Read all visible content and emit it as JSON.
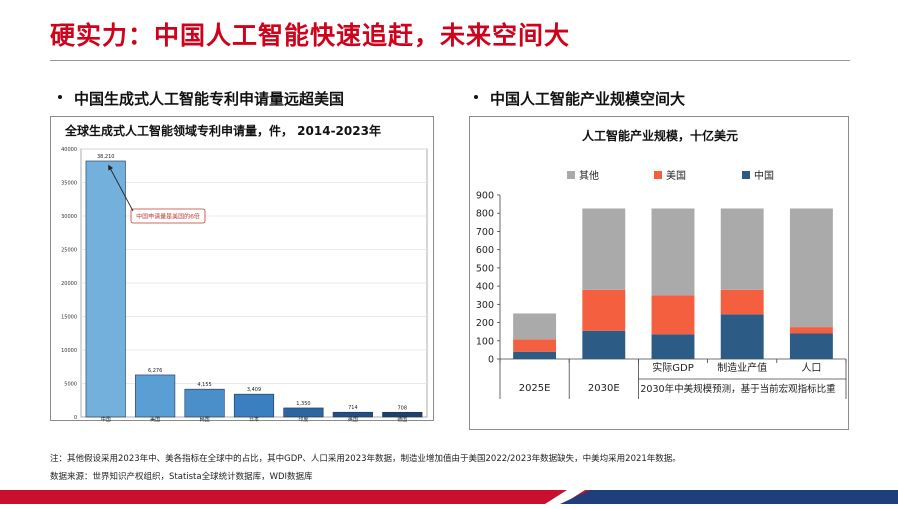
{
  "slide": {
    "title": "硬实力：中国人工智能快速追赶，未来空间大"
  },
  "left_section": {
    "heading": "中国生成式人工智能专利申请量远超美国"
  },
  "right_section": {
    "heading": "中国人工智能产业规模空间大"
  },
  "footnotes": {
    "note": "注：其他假设采用2023年中、美各指标在全球中的占比，其中GDP、人口采用2023年数据，制造业增加值由于美国2022/2023年数据缺失，中美均采用2021年数据。",
    "source": "数据来源：世界知识产权组织，Statista全球统计数据库，WDI数据库"
  },
  "chart_data": [
    {
      "type": "bar",
      "title": "全球生成式人工智能领域专利申请量，件， 2014-2023年",
      "categories": [
        "中国",
        "美国",
        "韩国",
        "日本",
        "印度",
        "英国",
        "德国"
      ],
      "values": [
        38210,
        6276,
        4155,
        3409,
        1350,
        714,
        708
      ],
      "value_labels": [
        "38,210",
        "6,276",
        "4,155",
        "3,409",
        "1,350",
        "714",
        "708"
      ],
      "ylim": [
        0,
        40000
      ],
      "yticks": [
        0,
        5000,
        10000,
        15000,
        20000,
        25000,
        30000,
        35000,
        40000
      ],
      "annotation": "中国申请量是美国的6倍",
      "colors": [
        "#74b0dc",
        "#5a9fd4",
        "#4a8fca",
        "#3a7fbf",
        "#2e66a3",
        "#244f85",
        "#1f3f6e"
      ],
      "grid": true
    },
    {
      "type": "bar",
      "stacked": true,
      "title": "人工智能产业规模，十亿美元",
      "categories": [
        "2025E",
        "2030E",
        "实际GDP",
        "制造业产值",
        "人口"
      ],
      "group_label": "2030年中美规模预测，基于当前宏观指标比重",
      "series": [
        {
          "name": "中国",
          "color": "#2c5b86",
          "values": [
            40,
            155,
            135,
            245,
            140
          ]
        },
        {
          "name": "美国",
          "color": "#f4603f",
          "values": [
            68,
            225,
            215,
            135,
            35
          ]
        },
        {
          "name": "其他",
          "color": "#aaaaaa",
          "values": [
            142,
            446,
            476,
            446,
            651
          ]
        }
      ],
      "ylim": [
        0,
        900
      ],
      "yticks": [
        0,
        100,
        200,
        300,
        400,
        500,
        600,
        700,
        800,
        900
      ],
      "legend_position": "top",
      "grid": false
    }
  ]
}
